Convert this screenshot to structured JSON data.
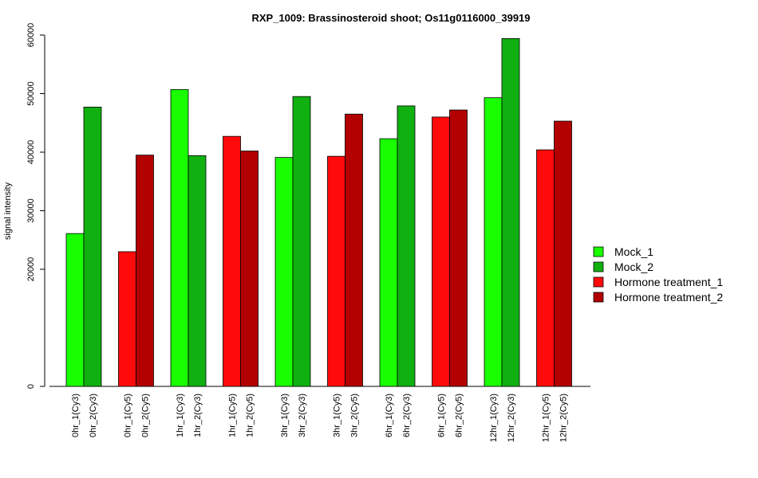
{
  "chart_data": {
    "type": "bar",
    "title": "RXP_1009: Brassinosteroid shoot; Os11g0116000_39919",
    "xlabel": "",
    "ylabel": "signal intensity",
    "y_ticks": [
      0,
      20000,
      30000,
      40000,
      50000,
      60000
    ],
    "y_tick_labels": [
      "0",
      "20000",
      "30000",
      "40000",
      "50000",
      "60000"
    ],
    "ylim": [
      0,
      60000
    ],
    "grid": false,
    "legend_position": "right",
    "legend": [
      {
        "name": "Mock_1",
        "color": "#1aff00"
      },
      {
        "name": "Mock_2",
        "color": "#10b010"
      },
      {
        "name": "Hormone treatment_1",
        "color": "#ff0a0a"
      },
      {
        "name": "Hormone treatment_2",
        "color": "#b30000"
      }
    ],
    "groups": [
      {
        "bars": [
          {
            "label": "0hr_1(Cy3)",
            "value": 26100,
            "color": "#1aff00"
          },
          {
            "label": "0hr_2(Cy3)",
            "value": 47700,
            "color": "#10b010"
          }
        ]
      },
      {
        "bars": [
          {
            "label": "0hr_1(Cy5)",
            "value": 23000,
            "color": "#ff0a0a"
          },
          {
            "label": "0hr_2(Cy5)",
            "value": 39500,
            "color": "#b30000"
          }
        ]
      },
      {
        "bars": [
          {
            "label": "1hr_1(Cy3)",
            "value": 50700,
            "color": "#1aff00"
          },
          {
            "label": "1hr_2(Cy3)",
            "value": 39400,
            "color": "#10b010"
          }
        ]
      },
      {
        "bars": [
          {
            "label": "1hr_1(Cy5)",
            "value": 42700,
            "color": "#ff0a0a"
          },
          {
            "label": "1hr_2(Cy5)",
            "value": 40200,
            "color": "#b30000"
          }
        ]
      },
      {
        "bars": [
          {
            "label": "3hr_1(Cy3)",
            "value": 39100,
            "color": "#1aff00"
          },
          {
            "label": "3hr_2(Cy3)",
            "value": 49500,
            "color": "#10b010"
          }
        ]
      },
      {
        "bars": [
          {
            "label": "3hr_1(Cy5)",
            "value": 39300,
            "color": "#ff0a0a"
          },
          {
            "label": "3hr_2(Cy5)",
            "value": 46500,
            "color": "#b30000"
          }
        ]
      },
      {
        "bars": [
          {
            "label": "6hr_1(Cy3)",
            "value": 42300,
            "color": "#1aff00"
          },
          {
            "label": "6hr_2(Cy3)",
            "value": 47900,
            "color": "#10b010"
          }
        ]
      },
      {
        "bars": [
          {
            "label": "6hr_1(Cy5)",
            "value": 46000,
            "color": "#ff0a0a"
          },
          {
            "label": "6hr_2(Cy5)",
            "value": 47200,
            "color": "#b30000"
          }
        ]
      },
      {
        "bars": [
          {
            "label": "12hr_1(Cy3)",
            "value": 49300,
            "color": "#1aff00"
          },
          {
            "label": "12hr_2(Cy3)",
            "value": 59400,
            "color": "#10b010"
          }
        ]
      },
      {
        "bars": [
          {
            "label": "12hr_1(Cy5)",
            "value": 40400,
            "color": "#ff0a0a"
          },
          {
            "label": "12hr_2(Cy5)",
            "value": 45300,
            "color": "#b30000"
          }
        ]
      }
    ]
  }
}
